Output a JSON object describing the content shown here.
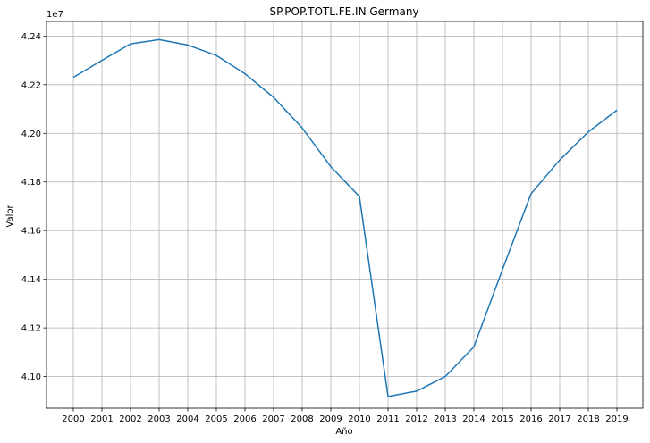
{
  "chart_data": {
    "type": "line",
    "title": "SP.POP.TOTL.FE.IN Germany",
    "xlabel": "Año",
    "ylabel": "Valor",
    "y_offset_label": "1e7",
    "x": [
      "2000",
      "2001",
      "2002",
      "2003",
      "2004",
      "2005",
      "2006",
      "2007",
      "2008",
      "2009",
      "2010",
      "2011",
      "2012",
      "2013",
      "2014",
      "2015",
      "2016",
      "2017",
      "2018",
      "2019"
    ],
    "series": [
      {
        "values": [
          42230000,
          42300000,
          42368000,
          42385000,
          42363000,
          42320000,
          42245000,
          42148000,
          42022000,
          41863000,
          41740000,
          40918000,
          40940000,
          41000000,
          41122000,
          41440000,
          41752000,
          41890000,
          42006000,
          42095000
        ],
        "color": "#1f77b4"
      }
    ],
    "ylim": [
      40870000,
      42460000
    ],
    "y_ticks": [
      41000000,
      41200000,
      41400000,
      41600000,
      41800000,
      42000000,
      42200000,
      42400000
    ],
    "y_tick_labels": [
      "4.10",
      "4.12",
      "4.14",
      "4.16",
      "4.18",
      "4.20",
      "4.22",
      "4.24"
    ],
    "grid": true
  }
}
